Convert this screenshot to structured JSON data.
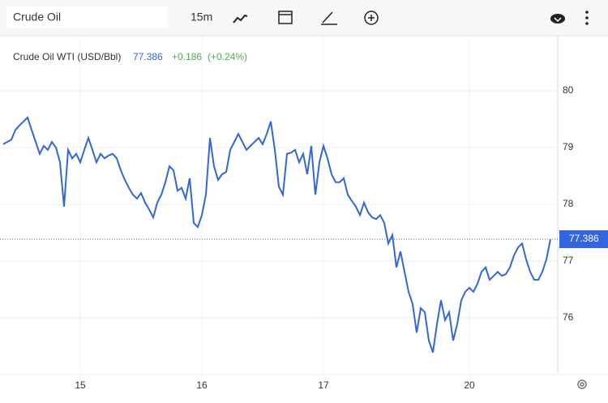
{
  "toolbar": {
    "search": "Crude Oil",
    "interval": "15m"
  },
  "chart_data": {
    "type": "line",
    "title": "Crude Oil WTI (USD/Bbl)",
    "change": "+0.186",
    "change_pct": "(+0.24%)",
    "series": [
      {
        "name": "Crude Oil WTI",
        "color": "#3366dd",
        "values": [
          79.06,
          79.1,
          79.14,
          79.31,
          79.39,
          79.46,
          79.53,
          79.31,
          79.1,
          78.89,
          79.03,
          78.96,
          79.1,
          79.0,
          78.74,
          77.96,
          78.96,
          78.81,
          78.89,
          78.74,
          78.96,
          79.17,
          78.96,
          78.74,
          78.89,
          78.81,
          78.86,
          78.89,
          78.81,
          78.6,
          78.43,
          78.29,
          78.17,
          78.1,
          78.2,
          78.03,
          77.91,
          77.77,
          78.03,
          78.17,
          78.39,
          78.67,
          78.6,
          78.24,
          78.29,
          78.1,
          78.46,
          77.67,
          77.6,
          77.81,
          78.17,
          79.17,
          78.67,
          78.43,
          78.53,
          78.57,
          78.96,
          79.1,
          79.24,
          79.1,
          78.96,
          79.03,
          79.1,
          79.17,
          79.06,
          79.24,
          79.46,
          78.96,
          78.31,
          78.17,
          78.89,
          78.91,
          78.96,
          78.74,
          78.89,
          78.53,
          79.03,
          78.17,
          78.74,
          79.03,
          78.81,
          78.53,
          78.39,
          78.39,
          78.46,
          78.17,
          78.06,
          77.96,
          77.81,
          78.03,
          77.86,
          77.77,
          77.74,
          77.81,
          77.67,
          77.31,
          77.46,
          76.89,
          77.17,
          76.81,
          76.46,
          76.24,
          75.74,
          76.17,
          76.1,
          75.6,
          75.39,
          75.89,
          76.31,
          75.96,
          76.1,
          75.6,
          75.89,
          76.31,
          76.46,
          76.53,
          76.46,
          76.6,
          76.81,
          76.89,
          76.67,
          76.74,
          76.81,
          76.74,
          76.77,
          76.89,
          77.1,
          77.24,
          77.31,
          77.03,
          76.81,
          76.67,
          76.67,
          76.81,
          77.03,
          77.386
        ]
      }
    ],
    "xlim": [
      -0.8,
      136.8
    ],
    "xticks": [
      {
        "value": 19,
        "label": "15"
      },
      {
        "value": 49,
        "label": "16"
      },
      {
        "value": 79,
        "label": "17"
      },
      {
        "value": 115,
        "label": "20"
      }
    ],
    "ylim": [
      75,
      80.957
    ],
    "yticks": [
      76,
      77,
      78,
      79,
      80
    ],
    "grid": true
  }
}
